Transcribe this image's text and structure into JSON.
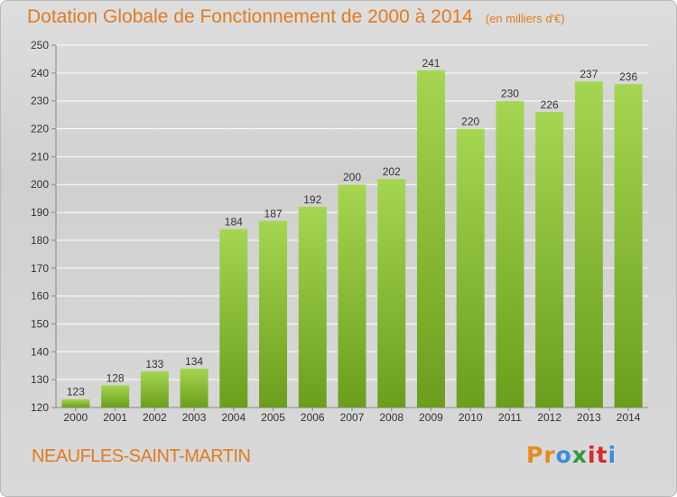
{
  "title": "Dotation Globale de Fonctionnement de 2000 à 2014",
  "unit_note": "(en milliers d'€)",
  "commune": "NEAUFLES-SAINT-MARTIN",
  "logo": {
    "letters": [
      "P",
      "r",
      "o",
      "x",
      "i",
      "t",
      "i"
    ],
    "colors": [
      "#e88a1a",
      "#e88a1a",
      "#3a8ed8",
      "#2f9a3a",
      "#d8282a",
      "#d8282a",
      "#3a8ed8"
    ]
  },
  "colors": {
    "bar_light": "#a5d651",
    "bar_dark": "#6a9e1c",
    "title": "#e07b20",
    "grid": "#ffffff",
    "axis": "#888888",
    "text": "#333333"
  },
  "chart_data": {
    "type": "bar",
    "categories": [
      "2000",
      "2001",
      "2002",
      "2003",
      "2004",
      "2005",
      "2006",
      "2007",
      "2008",
      "2009",
      "2010",
      "2011",
      "2012",
      "2013",
      "2014"
    ],
    "values": [
      123,
      128,
      133,
      134,
      184,
      187,
      192,
      200,
      202,
      241,
      220,
      230,
      226,
      237,
      236
    ],
    "ylim": [
      120,
      250
    ],
    "yticks": [
      120,
      130,
      140,
      150,
      160,
      170,
      180,
      190,
      200,
      210,
      220,
      230,
      240,
      250
    ],
    "grid": true,
    "data_labels": true,
    "xlabel": "",
    "ylabel": ""
  }
}
